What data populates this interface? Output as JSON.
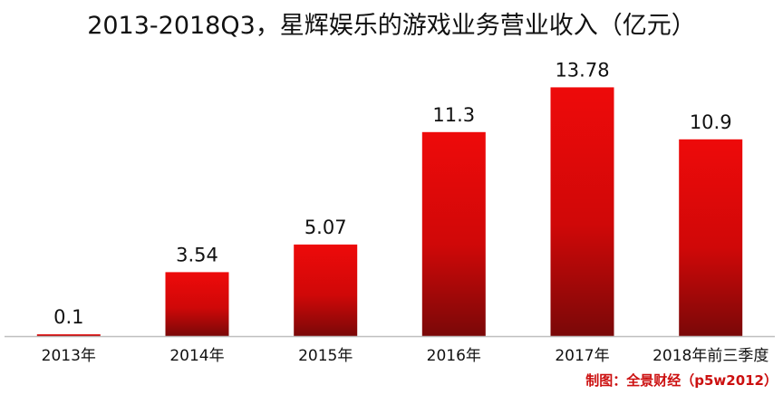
{
  "chart_data": {
    "type": "bar",
    "title": "2013-2018Q3，星辉娱乐的游戏业务营业收入（亿元）",
    "categories": [
      "2013年",
      "2014年",
      "2015年",
      "2016年",
      "2017年",
      "2018年前三季度"
    ],
    "values": [
      0.1,
      3.54,
      5.07,
      11.3,
      13.78,
      10.9
    ],
    "value_labels": [
      "0.1",
      "3.54",
      "5.07",
      "11.3",
      "13.78",
      "10.9"
    ],
    "xlabel": "",
    "ylabel": "",
    "ylim": [
      0,
      14.5
    ],
    "grid": false,
    "legend": "none",
    "colors": {
      "bar_top": "#ee0a0a",
      "bar_bottom": "#7a0808",
      "axis": "#bfbfbf",
      "value_label": "#111111",
      "category_label": "#111111"
    }
  },
  "source_note": "制图：全景财经（p5w2012）"
}
